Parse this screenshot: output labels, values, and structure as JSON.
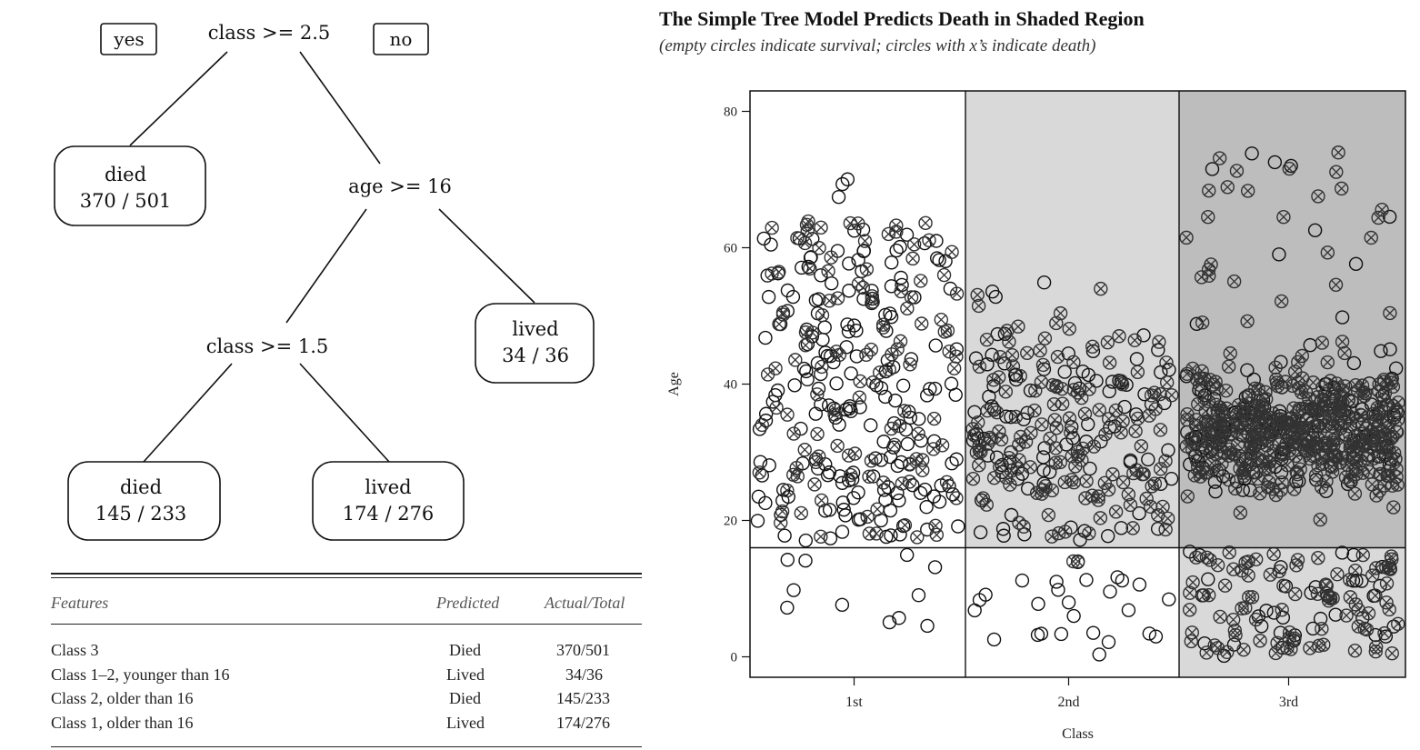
{
  "tree": {
    "yes_label": "yes",
    "no_label": "no",
    "root_split": "class >= 2.5",
    "age_split": "age >= 16",
    "class_split": "class >= 1.5",
    "leaf_class3": {
      "outcome": "died",
      "count": "370 / 501"
    },
    "leaf_young": {
      "outcome": "lived",
      "count": "34 / 36"
    },
    "leaf_class2": {
      "outcome": "died",
      "count": "145 / 233"
    },
    "leaf_class1": {
      "outcome": "lived",
      "count": "174 / 276"
    }
  },
  "table": {
    "headers": [
      "Features",
      "Predicted",
      "Actual/Total"
    ],
    "rows": [
      {
        "feature": "Class 3",
        "predicted": "Died",
        "actual": "370/501"
      },
      {
        "feature": "Class 1–2, younger than 16",
        "predicted": "Lived",
        "actual": "34/36"
      },
      {
        "feature": "Class 2, older than 16",
        "predicted": "Died",
        "actual": "145/233"
      },
      {
        "feature": "Class 1, older than 16",
        "predicted": "Lived",
        "actual": "174/276"
      }
    ]
  },
  "chart_title": "The Simple Tree Model Predicts Death in Shaded Region",
  "chart_subtitle": "(empty circles indicate survival; circles with x’s indicate death)",
  "chart_data": {
    "type": "scatter",
    "xlabel": "Class",
    "ylabel": "Age",
    "categories": [
      "1st",
      "2nd",
      "3rd"
    ],
    "ylim": [
      -3,
      83
    ],
    "yticks": [
      0,
      20,
      40,
      60,
      80
    ],
    "age_split": 16,
    "shading": {
      "1st": "none",
      "2nd": "age>=16",
      "3rd": "all"
    },
    "shade_colors": {
      "light": "#d9d9d9",
      "dark": "#bdbdbd"
    },
    "marker_colors": {
      "survived": "#111111",
      "died": "#333333"
    },
    "series": [
      {
        "name": "survived",
        "marker": "empty circle",
        "counts": {
          "1st": 200,
          "2nd": 118,
          "3rd": 181
        }
      },
      {
        "name": "died",
        "marker": "circle with x",
        "counts": {
          "1st": 123,
          "2nd": 158,
          "3rd": 528
        }
      }
    ]
  }
}
